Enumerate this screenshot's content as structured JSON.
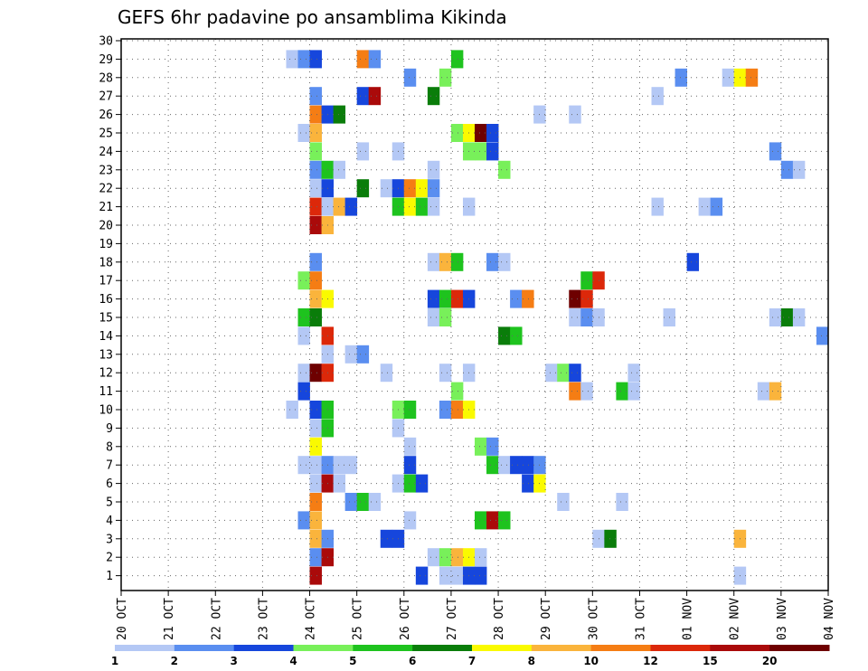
{
  "chart_data": {
    "type": "heatmap",
    "title": "GEFS 6hr padavine po ansamblima Kikinda",
    "y_labels": [
      "1",
      "2",
      "3",
      "4",
      "5",
      "6",
      "7",
      "8",
      "9",
      "10",
      "11",
      "12",
      "13",
      "14",
      "15",
      "16",
      "17",
      "18",
      "19",
      "20",
      "21",
      "22",
      "23",
      "24",
      "25",
      "26",
      "27",
      "28",
      "29",
      "30"
    ],
    "x_labels": [
      "20 OCT",
      "21 OCT",
      "22 OCT",
      "23 OCT",
      "24 OCT",
      "25 OCT",
      "26 OCT",
      "27 OCT",
      "28 OCT",
      "29 OCT",
      "30 OCT",
      "31 OCT",
      "01 NOV",
      "02 NOV",
      "03 NOV",
      "04 NOV"
    ],
    "x_unit": "6-hour steps from 20 OCT 00Z",
    "x_range": [
      0,
      60
    ],
    "y_range": [
      1,
      30
    ],
    "grid": true,
    "legend": {
      "placement": "bottom",
      "labels": [
        "1",
        "2",
        "3",
        "4",
        "5",
        "6",
        "7",
        "8",
        "10",
        "12",
        "15",
        "20"
      ],
      "colors": [
        "#b4c8f5",
        "#5a8ef0",
        "#1646dc",
        "#78f05a",
        "#1ec31e",
        "#0a7d0a",
        "#fafa00",
        "#fab43c",
        "#f57d14",
        "#dc280a",
        "#aa0a0a",
        "#6e0000"
      ]
    },
    "cells": [
      {
        "y": 1,
        "x": 16,
        "c": 10
      },
      {
        "y": 1,
        "x": 25,
        "c": 2
      },
      {
        "y": 1,
        "x": 27,
        "c": 0
      },
      {
        "y": 1,
        "x": 28,
        "c": 0
      },
      {
        "y": 1,
        "x": 29,
        "c": 2
      },
      {
        "y": 1,
        "x": 30,
        "c": 2
      },
      {
        "y": 1,
        "x": 52,
        "c": 0
      },
      {
        "y": 2,
        "x": 16,
        "c": 1
      },
      {
        "y": 2,
        "x": 17,
        "c": 10
      },
      {
        "y": 2,
        "x": 26,
        "c": 0
      },
      {
        "y": 2,
        "x": 27,
        "c": 3
      },
      {
        "y": 2,
        "x": 28,
        "c": 7
      },
      {
        "y": 2,
        "x": 29,
        "c": 6
      },
      {
        "y": 2,
        "x": 30,
        "c": 0
      },
      {
        "y": 3,
        "x": 16,
        "c": 7
      },
      {
        "y": 3,
        "x": 17,
        "c": 1
      },
      {
        "y": 3,
        "x": 22,
        "c": 2
      },
      {
        "y": 3,
        "x": 23,
        "c": 2
      },
      {
        "y": 3,
        "x": 40,
        "c": 0
      },
      {
        "y": 3,
        "x": 41,
        "c": 5
      },
      {
        "y": 3,
        "x": 52,
        "c": 7
      },
      {
        "y": 4,
        "x": 15,
        "c": 1
      },
      {
        "y": 4,
        "x": 16,
        "c": 7
      },
      {
        "y": 4,
        "x": 24,
        "c": 0
      },
      {
        "y": 4,
        "x": 30,
        "c": 4
      },
      {
        "y": 4,
        "x": 31,
        "c": 10
      },
      {
        "y": 4,
        "x": 32,
        "c": 4
      },
      {
        "y": 5,
        "x": 16,
        "c": 8
      },
      {
        "y": 5,
        "x": 19,
        "c": 1
      },
      {
        "y": 5,
        "x": 20,
        "c": 4
      },
      {
        "y": 5,
        "x": 21,
        "c": 0
      },
      {
        "y": 5,
        "x": 37,
        "c": 0
      },
      {
        "y": 5,
        "x": 42,
        "c": 0
      },
      {
        "y": 6,
        "x": 16,
        "c": 0
      },
      {
        "y": 6,
        "x": 17,
        "c": 10
      },
      {
        "y": 6,
        "x": 18,
        "c": 0
      },
      {
        "y": 6,
        "x": 23,
        "c": 0
      },
      {
        "y": 6,
        "x": 24,
        "c": 4
      },
      {
        "y": 6,
        "x": 25,
        "c": 2
      },
      {
        "y": 6,
        "x": 34,
        "c": 2
      },
      {
        "y": 6,
        "x": 35,
        "c": 6
      },
      {
        "y": 7,
        "x": 15,
        "c": 0
      },
      {
        "y": 7,
        "x": 16,
        "c": 0
      },
      {
        "y": 7,
        "x": 17,
        "c": 1
      },
      {
        "y": 7,
        "x": 18,
        "c": 0
      },
      {
        "y": 7,
        "x": 19,
        "c": 0
      },
      {
        "y": 7,
        "x": 24,
        "c": 2
      },
      {
        "y": 7,
        "x": 31,
        "c": 4
      },
      {
        "y": 7,
        "x": 32,
        "c": 0
      },
      {
        "y": 7,
        "x": 33,
        "c": 2
      },
      {
        "y": 7,
        "x": 34,
        "c": 2
      },
      {
        "y": 7,
        "x": 35,
        "c": 1
      },
      {
        "y": 8,
        "x": 16,
        "c": 6
      },
      {
        "y": 8,
        "x": 24,
        "c": 0
      },
      {
        "y": 8,
        "x": 30,
        "c": 3
      },
      {
        "y": 8,
        "x": 31,
        "c": 1
      },
      {
        "y": 9,
        "x": 16,
        "c": 0
      },
      {
        "y": 9,
        "x": 17,
        "c": 4
      },
      {
        "y": 9,
        "x": 23,
        "c": 0
      },
      {
        "y": 10,
        "x": 14,
        "c": 0
      },
      {
        "y": 10,
        "x": 16,
        "c": 2
      },
      {
        "y": 10,
        "x": 17,
        "c": 4
      },
      {
        "y": 10,
        "x": 23,
        "c": 3
      },
      {
        "y": 10,
        "x": 24,
        "c": 4
      },
      {
        "y": 10,
        "x": 27,
        "c": 1
      },
      {
        "y": 10,
        "x": 28,
        "c": 8
      },
      {
        "y": 10,
        "x": 29,
        "c": 6
      },
      {
        "y": 11,
        "x": 15,
        "c": 2
      },
      {
        "y": 11,
        "x": 28,
        "c": 3
      },
      {
        "y": 11,
        "x": 38,
        "c": 8
      },
      {
        "y": 11,
        "x": 39,
        "c": 0
      },
      {
        "y": 11,
        "x": 42,
        "c": 4
      },
      {
        "y": 11,
        "x": 43,
        "c": 0
      },
      {
        "y": 11,
        "x": 54,
        "c": 0
      },
      {
        "y": 11,
        "x": 55,
        "c": 7
      },
      {
        "y": 12,
        "x": 15,
        "c": 0
      },
      {
        "y": 12,
        "x": 16,
        "c": 11
      },
      {
        "y": 12,
        "x": 17,
        "c": 9
      },
      {
        "y": 12,
        "x": 22,
        "c": 0
      },
      {
        "y": 12,
        "x": 27,
        "c": 0
      },
      {
        "y": 12,
        "x": 29,
        "c": 0
      },
      {
        "y": 12,
        "x": 36,
        "c": 0
      },
      {
        "y": 12,
        "x": 37,
        "c": 3
      },
      {
        "y": 12,
        "x": 38,
        "c": 2
      },
      {
        "y": 12,
        "x": 43,
        "c": 0
      },
      {
        "y": 13,
        "x": 17,
        "c": 0
      },
      {
        "y": 13,
        "x": 19,
        "c": 0
      },
      {
        "y": 13,
        "x": 20,
        "c": 1
      },
      {
        "y": 14,
        "x": 15,
        "c": 0
      },
      {
        "y": 14,
        "x": 17,
        "c": 9
      },
      {
        "y": 14,
        "x": 32,
        "c": 5
      },
      {
        "y": 14,
        "x": 33,
        "c": 4
      },
      {
        "y": 14,
        "x": 59,
        "c": 1
      },
      {
        "y": 15,
        "x": 15,
        "c": 4
      },
      {
        "y": 15,
        "x": 16,
        "c": 5
      },
      {
        "y": 15,
        "x": 26,
        "c": 0
      },
      {
        "y": 15,
        "x": 27,
        "c": 3
      },
      {
        "y": 15,
        "x": 38,
        "c": 0
      },
      {
        "y": 15,
        "x": 39,
        "c": 1
      },
      {
        "y": 15,
        "x": 40,
        "c": 0
      },
      {
        "y": 15,
        "x": 46,
        "c": 0
      },
      {
        "y": 15,
        "x": 55,
        "c": 0
      },
      {
        "y": 15,
        "x": 56,
        "c": 5
      },
      {
        "y": 15,
        "x": 57,
        "c": 0
      },
      {
        "y": 16,
        "x": 16,
        "c": 7
      },
      {
        "y": 16,
        "x": 17,
        "c": 6
      },
      {
        "y": 16,
        "x": 26,
        "c": 2
      },
      {
        "y": 16,
        "x": 27,
        "c": 4
      },
      {
        "y": 16,
        "x": 28,
        "c": 9
      },
      {
        "y": 16,
        "x": 29,
        "c": 2
      },
      {
        "y": 16,
        "x": 33,
        "c": 1
      },
      {
        "y": 16,
        "x": 34,
        "c": 8
      },
      {
        "y": 16,
        "x": 38,
        "c": 11
      },
      {
        "y": 16,
        "x": 39,
        "c": 9
      },
      {
        "y": 17,
        "x": 15,
        "c": 3
      },
      {
        "y": 17,
        "x": 16,
        "c": 8
      },
      {
        "y": 17,
        "x": 39,
        "c": 4
      },
      {
        "y": 17,
        "x": 40,
        "c": 9
      },
      {
        "y": 18,
        "x": 16,
        "c": 1
      },
      {
        "y": 18,
        "x": 26,
        "c": 0
      },
      {
        "y": 18,
        "x": 27,
        "c": 7
      },
      {
        "y": 18,
        "x": 28,
        "c": 4
      },
      {
        "y": 18,
        "x": 31,
        "c": 1
      },
      {
        "y": 18,
        "x": 32,
        "c": 0
      },
      {
        "y": 18,
        "x": 48,
        "c": 2
      },
      {
        "y": 20,
        "x": 16,
        "c": 10
      },
      {
        "y": 20,
        "x": 17,
        "c": 7
      },
      {
        "y": 21,
        "x": 16,
        "c": 9
      },
      {
        "y": 21,
        "x": 17,
        "c": 0
      },
      {
        "y": 21,
        "x": 18,
        "c": 7
      },
      {
        "y": 21,
        "x": 19,
        "c": 2
      },
      {
        "y": 21,
        "x": 23,
        "c": 4
      },
      {
        "y": 21,
        "x": 24,
        "c": 6
      },
      {
        "y": 21,
        "x": 25,
        "c": 4
      },
      {
        "y": 21,
        "x": 26,
        "c": 0
      },
      {
        "y": 21,
        "x": 29,
        "c": 0
      },
      {
        "y": 21,
        "x": 45,
        "c": 0
      },
      {
        "y": 21,
        "x": 49,
        "c": 0
      },
      {
        "y": 21,
        "x": 50,
        "c": 1
      },
      {
        "y": 22,
        "x": 16,
        "c": 0
      },
      {
        "y": 22,
        "x": 17,
        "c": 2
      },
      {
        "y": 22,
        "x": 20,
        "c": 5
      },
      {
        "y": 22,
        "x": 22,
        "c": 0
      },
      {
        "y": 22,
        "x": 23,
        "c": 2
      },
      {
        "y": 22,
        "x": 24,
        "c": 8
      },
      {
        "y": 22,
        "x": 25,
        "c": 6
      },
      {
        "y": 22,
        "x": 26,
        "c": 1
      },
      {
        "y": 23,
        "x": 16,
        "c": 1
      },
      {
        "y": 23,
        "x": 17,
        "c": 4
      },
      {
        "y": 23,
        "x": 18,
        "c": 0
      },
      {
        "y": 23,
        "x": 26,
        "c": 0
      },
      {
        "y": 23,
        "x": 32,
        "c": 3
      },
      {
        "y": 23,
        "x": 56,
        "c": 1
      },
      {
        "y": 23,
        "x": 57,
        "c": 0
      },
      {
        "y": 24,
        "x": 16,
        "c": 3
      },
      {
        "y": 24,
        "x": 20,
        "c": 0
      },
      {
        "y": 24,
        "x": 23,
        "c": 0
      },
      {
        "y": 24,
        "x": 29,
        "c": 3
      },
      {
        "y": 24,
        "x": 30,
        "c": 3
      },
      {
        "y": 24,
        "x": 31,
        "c": 2
      },
      {
        "y": 24,
        "x": 55,
        "c": 1
      },
      {
        "y": 25,
        "x": 15,
        "c": 0
      },
      {
        "y": 25,
        "x": 16,
        "c": 7
      },
      {
        "y": 25,
        "x": 28,
        "c": 3
      },
      {
        "y": 25,
        "x": 29,
        "c": 6
      },
      {
        "y": 25,
        "x": 30,
        "c": 11
      },
      {
        "y": 25,
        "x": 31,
        "c": 2
      },
      {
        "y": 26,
        "x": 16,
        "c": 8
      },
      {
        "y": 26,
        "x": 17,
        "c": 2
      },
      {
        "y": 26,
        "x": 18,
        "c": 5
      },
      {
        "y": 26,
        "x": 35,
        "c": 0
      },
      {
        "y": 26,
        "x": 38,
        "c": 0
      },
      {
        "y": 27,
        "x": 16,
        "c": 1
      },
      {
        "y": 27,
        "x": 20,
        "c": 2
      },
      {
        "y": 27,
        "x": 21,
        "c": 10
      },
      {
        "y": 27,
        "x": 26,
        "c": 5
      },
      {
        "y": 27,
        "x": 45,
        "c": 0
      },
      {
        "y": 28,
        "x": 24,
        "c": 1
      },
      {
        "y": 28,
        "x": 27,
        "c": 3
      },
      {
        "y": 28,
        "x": 47,
        "c": 1
      },
      {
        "y": 28,
        "x": 51,
        "c": 0
      },
      {
        "y": 28,
        "x": 52,
        "c": 6
      },
      {
        "y": 28,
        "x": 53,
        "c": 8
      },
      {
        "y": 29,
        "x": 14,
        "c": 0
      },
      {
        "y": 29,
        "x": 15,
        "c": 1
      },
      {
        "y": 29,
        "x": 16,
        "c": 2
      },
      {
        "y": 29,
        "x": 20,
        "c": 8
      },
      {
        "y": 29,
        "x": 21,
        "c": 1
      },
      {
        "y": 29,
        "x": 28,
        "c": 4
      }
    ]
  }
}
